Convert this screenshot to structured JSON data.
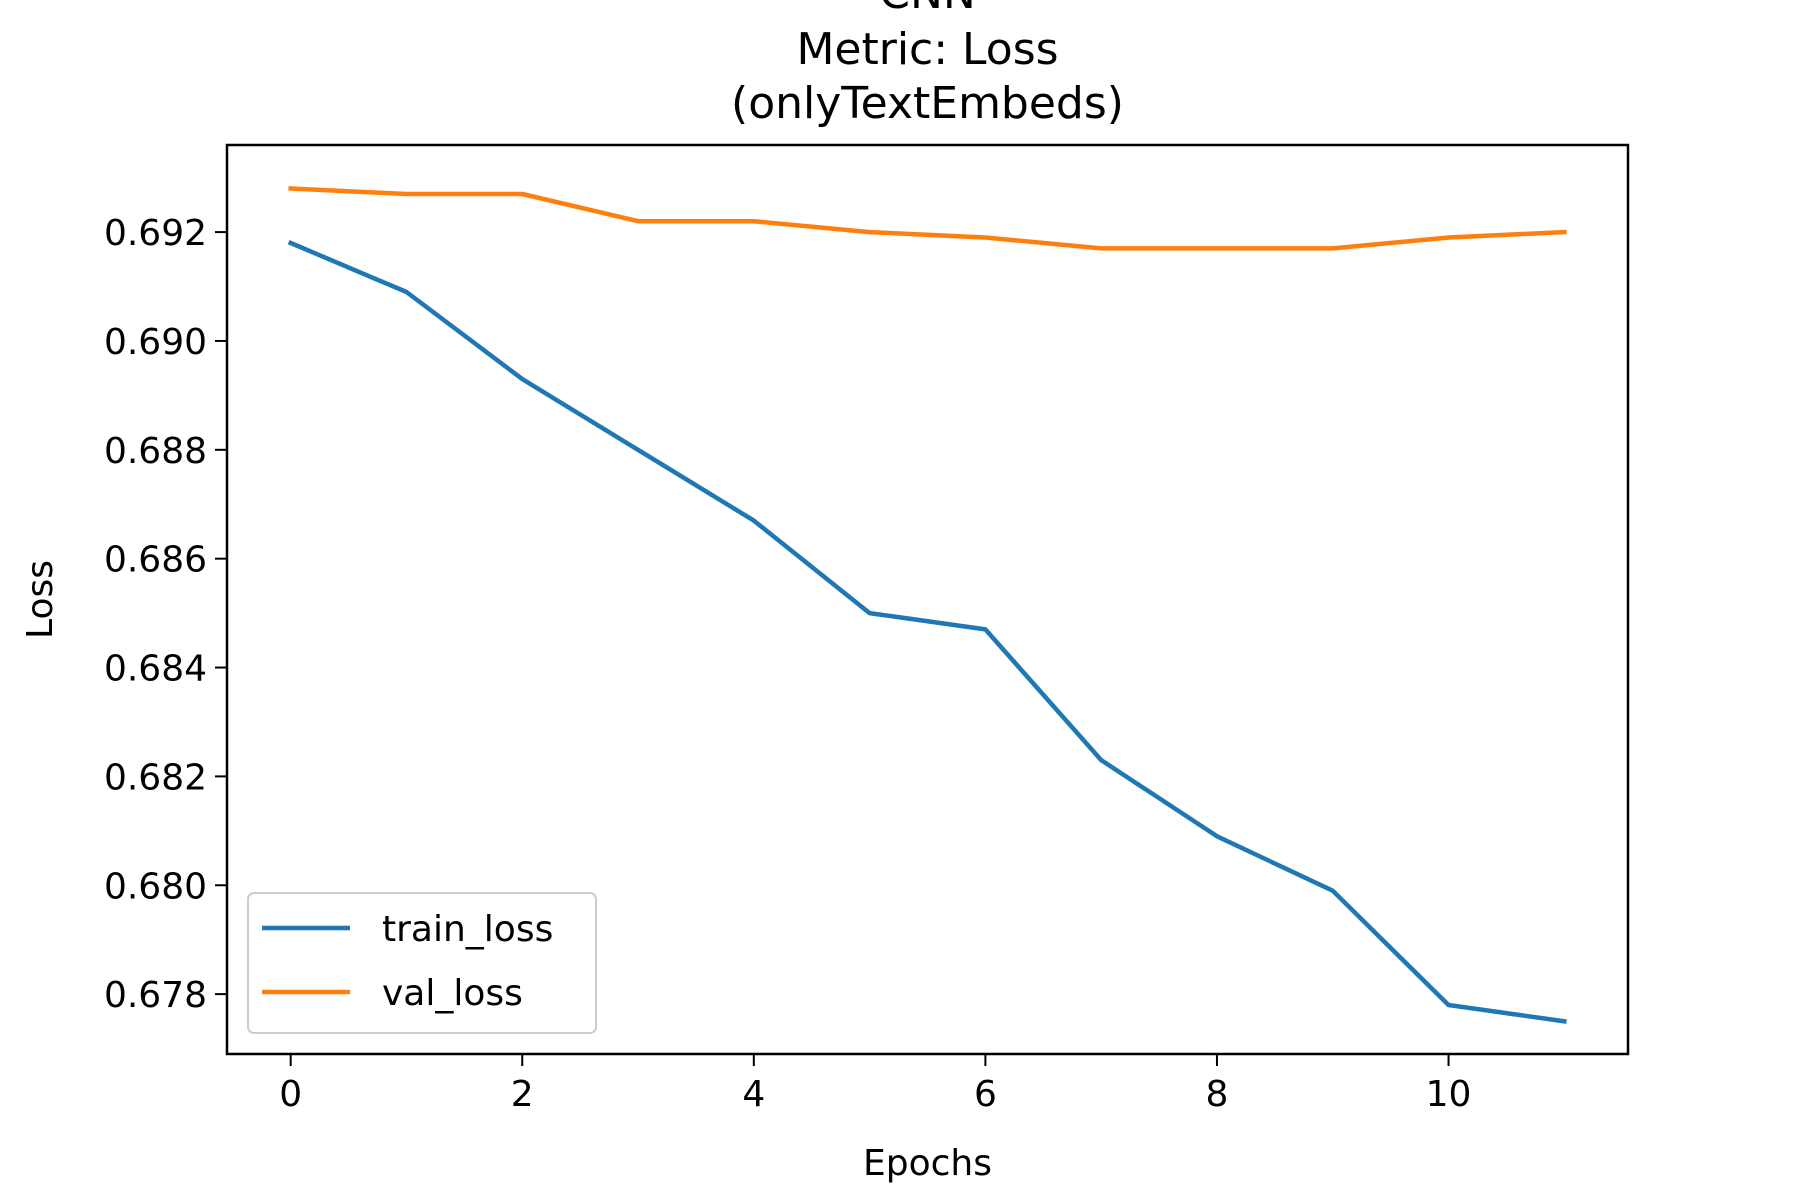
{
  "chart_data": {
    "type": "line",
    "title_lines": [
      "CNN",
      "Metric: Loss",
      "(onlyTextEmbeds)"
    ],
    "xlabel": "Epochs",
    "ylabel": "Loss",
    "xlim": [
      -0.55,
      11.55
    ],
    "ylim": [
      0.6769,
      0.6936
    ],
    "x_ticks": [
      0,
      2,
      4,
      6,
      8,
      10
    ],
    "y_ticks": [
      0.678,
      0.68,
      0.682,
      0.684,
      0.686,
      0.688,
      0.69,
      0.692
    ],
    "x_tick_labels": [
      "0",
      "2",
      "4",
      "6",
      "8",
      "10"
    ],
    "y_tick_labels": [
      "0.678",
      "0.680",
      "0.682",
      "0.684",
      "0.686",
      "0.688",
      "0.690",
      "0.692"
    ],
    "grid": false,
    "legend_position": "lower-left",
    "x": [
      0,
      1,
      2,
      3,
      4,
      5,
      6,
      7,
      8,
      9,
      10,
      11
    ],
    "series": [
      {
        "name": "train_loss",
        "color": "#1f77b4",
        "values": [
          0.6918,
          0.6909,
          0.6893,
          0.688,
          0.6867,
          0.685,
          0.6847,
          0.6823,
          0.6809,
          0.6799,
          0.6778,
          0.6775
        ]
      },
      {
        "name": "val_loss",
        "color": "#ff7f0e",
        "values": [
          0.6928,
          0.6927,
          0.6927,
          0.6922,
          0.6922,
          0.692,
          0.6919,
          0.6917,
          0.6917,
          0.6917,
          0.6919,
          0.692
        ]
      }
    ]
  }
}
